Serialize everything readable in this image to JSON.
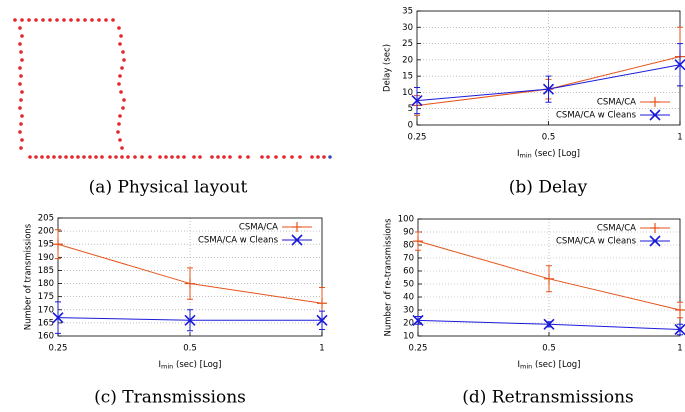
{
  "chart_data": [
    {
      "type": "scatter",
      "caption": "(a) Physical layout",
      "xlim": [
        0,
        340
      ],
      "ylim": [
        170,
        10
      ],
      "series": [
        {
          "color": "#e8252a",
          "x": [
            15,
            22,
            29,
            36,
            43,
            50,
            57,
            64,
            71,
            78,
            85,
            92,
            99,
            106,
            113,
            20,
            22,
            20,
            21,
            22,
            20,
            21,
            20,
            22,
            21,
            20,
            22,
            21,
            20,
            22,
            21,
            119,
            121,
            120,
            123,
            124,
            122,
            120,
            119,
            121,
            124,
            123,
            120,
            119,
            118,
            120,
            122,
            30,
            36,
            42,
            48,
            54,
            60,
            66,
            72,
            78,
            84,
            90,
            96,
            102,
            110,
            116,
            122,
            128,
            135,
            142,
            150,
            160,
            166,
            172,
            178,
            184,
            194,
            200,
            212,
            218,
            224,
            230,
            240,
            248,
            262,
            268,
            276,
            284,
            292,
            300,
            312,
            318,
            324
          ],
          "values": [
            20,
            20,
            20,
            20,
            20,
            20,
            20,
            20,
            20,
            20,
            20,
            20,
            20,
            20,
            20,
            28,
            36,
            44,
            52,
            60,
            68,
            76,
            84,
            92,
            100,
            108,
            116,
            124,
            132,
            140,
            148,
            28,
            36,
            44,
            52,
            60,
            68,
            76,
            84,
            92,
            100,
            108,
            116,
            124,
            132,
            140,
            148,
            157,
            157,
            157,
            157,
            157,
            157,
            157,
            157,
            157,
            157,
            157,
            157,
            157,
            157,
            157,
            157,
            157,
            157,
            157,
            157,
            157,
            157,
            157,
            157,
            157,
            157,
            157,
            157,
            157,
            157,
            157,
            157,
            157,
            157,
            157,
            157,
            157,
            157,
            157,
            157,
            157,
            157
          ]
        },
        {
          "color": "#3b4cc0",
          "x": [
            330
          ],
          "values": [
            157
          ]
        }
      ]
    },
    {
      "type": "line",
      "caption": "(b) Delay",
      "ylabel": "Delay (sec)",
      "xlabel": {
        "main": "I",
        "sub": "min",
        "rest": " (sec) [Log]"
      },
      "x": [
        0.25,
        0.5,
        1
      ],
      "xlim": [
        0.25,
        1
      ],
      "xticks": [
        0.25,
        0.5,
        1
      ],
      "xscale": "log",
      "ylim": [
        0,
        35
      ],
      "yticks": [
        0,
        5,
        10,
        15,
        20,
        25,
        30,
        35
      ],
      "grid": true,
      "legend": "bottom-right",
      "series": [
        {
          "name": "CSMA/CA",
          "color": "#e4531b",
          "marker": "plus",
          "values": [
            6,
            11,
            21
          ],
          "errors": [
            3,
            3,
            9
          ]
        },
        {
          "name": "CSMA/CA w Cleans",
          "color": "#1a1adb",
          "marker": "cross",
          "values": [
            7.5,
            11,
            18.5
          ],
          "errors": [
            4,
            4,
            6.5
          ]
        }
      ]
    },
    {
      "type": "line",
      "caption": "(c) Transmissions",
      "ylabel": "Number of transmissions",
      "xlabel": {
        "main": "I",
        "sub": "min",
        "rest": " (sec) [Log]"
      },
      "x": [
        0.25,
        0.5,
        1
      ],
      "xlim": [
        0.25,
        1
      ],
      "xticks": [
        0.25,
        0.5,
        1
      ],
      "xscale": "log",
      "ylim": [
        160,
        205
      ],
      "yticks": [
        160,
        165,
        170,
        175,
        180,
        185,
        190,
        195,
        200,
        205
      ],
      "grid": true,
      "legend": "top-right",
      "series": [
        {
          "name": "CSMA/CA",
          "color": "#e4531b",
          "marker": "plus",
          "values": [
            195,
            180,
            172.5
          ],
          "errors": [
            5.5,
            6,
            6
          ]
        },
        {
          "name": "CSMA/CA w Cleans",
          "color": "#1a1adb",
          "marker": "cross",
          "values": [
            167,
            166,
            166
          ],
          "errors": [
            6,
            4,
            3.5
          ]
        }
      ]
    },
    {
      "type": "line",
      "caption": "(d) Retransmissions",
      "ylabel": "Number of re-transmissions",
      "xlabel": {
        "main": "I",
        "sub": "min",
        "rest": " (sec) [Log]"
      },
      "x": [
        0.25,
        0.5,
        1
      ],
      "xlim": [
        0.25,
        1
      ],
      "xticks": [
        0.25,
        0.5,
        1
      ],
      "xscale": "log",
      "ylim": [
        10,
        100
      ],
      "yticks": [
        10,
        20,
        30,
        40,
        50,
        60,
        70,
        80,
        90,
        100
      ],
      "grid": true,
      "legend": "top-right",
      "series": [
        {
          "name": "CSMA/CA",
          "color": "#e4531b",
          "marker": "plus",
          "values": [
            83,
            54,
            30
          ],
          "errors": [
            7,
            10,
            6
          ]
        },
        {
          "name": "CSMA/CA w Cleans",
          "color": "#1a1adb",
          "marker": "cross",
          "values": [
            22,
            19,
            15
          ],
          "errors": [
            3,
            2,
            4
          ]
        }
      ]
    }
  ]
}
